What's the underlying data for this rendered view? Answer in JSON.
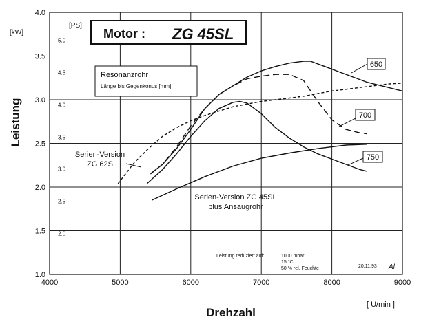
{
  "chart_data": {
    "type": "line",
    "title": "Motor :",
    "title_model": "ZG 45SL",
    "xlabel": "Drehzahl",
    "xunit": "[ U/min ]",
    "ylabel": "Leistung",
    "yunit_kw": "[kW]",
    "yunit_ps": "[PS]",
    "xlim": [
      4000,
      9000
    ],
    "ylim": [
      1.0,
      4.0
    ],
    "x_ticks": [
      "4000",
      "5000",
      "6000",
      "7000",
      "8000",
      "9000"
    ],
    "x_tick_values": [
      4000,
      5000,
      6000,
      7000,
      8000,
      9000
    ],
    "y_ticks": [
      "1.0",
      "1.5",
      "2.0",
      "2.5",
      "3.0",
      "3.5",
      "4.0"
    ],
    "y_tick_values": [
      1.0,
      1.5,
      2.0,
      2.5,
      3.0,
      3.5,
      4.0
    ],
    "ps_ticks": [
      {
        "label": "2.0",
        "kw": 1.47
      },
      {
        "label": "2.5",
        "kw": 1.84
      },
      {
        "label": "3.0",
        "kw": 2.21
      },
      {
        "label": "3.5",
        "kw": 2.57
      },
      {
        "label": "4.0",
        "kw": 2.94
      },
      {
        "label": "4.5",
        "kw": 3.31
      },
      {
        "label": "5.0",
        "kw": 3.68
      }
    ],
    "grid": true,
    "legend_box": {
      "title": "Resonanzrohr",
      "subtitle": "Länge bis Gegenkonus [mm]"
    },
    "series": [
      {
        "name": "650",
        "style": "solid",
        "points": [
          [
            5440,
            2.16
          ],
          [
            5600,
            2.26
          ],
          [
            5800,
            2.44
          ],
          [
            6000,
            2.66
          ],
          [
            6200,
            2.9
          ],
          [
            6400,
            3.06
          ],
          [
            6600,
            3.16
          ],
          [
            6800,
            3.26
          ],
          [
            7000,
            3.33
          ],
          [
            7200,
            3.38
          ],
          [
            7400,
            3.42
          ],
          [
            7600,
            3.44
          ],
          [
            7700,
            3.44
          ],
          [
            7900,
            3.38
          ],
          [
            8100,
            3.32
          ],
          [
            8300,
            3.26
          ],
          [
            8500,
            3.2
          ],
          [
            8700,
            3.16
          ],
          [
            9000,
            3.1
          ]
        ]
      },
      {
        "name": "700",
        "style": "dashed",
        "points": [
          [
            5430,
            2.15
          ],
          [
            5600,
            2.26
          ],
          [
            5800,
            2.46
          ],
          [
            6000,
            2.7
          ],
          [
            6200,
            2.9
          ],
          [
            6400,
            3.06
          ],
          [
            6600,
            3.16
          ],
          [
            6800,
            3.24
          ],
          [
            7000,
            3.27
          ],
          [
            7200,
            3.29
          ],
          [
            7400,
            3.29
          ],
          [
            7600,
            3.22
          ],
          [
            7800,
            2.98
          ],
          [
            8000,
            2.77
          ],
          [
            8200,
            2.66
          ],
          [
            8400,
            2.62
          ],
          [
            8500,
            2.61
          ]
        ]
      },
      {
        "name": "750",
        "style": "solid",
        "points": [
          [
            5380,
            2.04
          ],
          [
            5600,
            2.2
          ],
          [
            5800,
            2.38
          ],
          [
            6000,
            2.58
          ],
          [
            6200,
            2.76
          ],
          [
            6400,
            2.9
          ],
          [
            6600,
            2.97
          ],
          [
            6700,
            2.98
          ],
          [
            6800,
            2.96
          ],
          [
            7000,
            2.84
          ],
          [
            7200,
            2.68
          ],
          [
            7400,
            2.56
          ],
          [
            7600,
            2.46
          ],
          [
            7800,
            2.38
          ],
          [
            8000,
            2.32
          ],
          [
            8200,
            2.26
          ],
          [
            8400,
            2.2
          ],
          [
            8500,
            2.18
          ]
        ]
      },
      {
        "name": "Serien-Version ZG 62S",
        "style": "dashed-fine",
        "points": [
          [
            4970,
            2.04
          ],
          [
            5200,
            2.28
          ],
          [
            5400,
            2.44
          ],
          [
            5600,
            2.58
          ],
          [
            5800,
            2.68
          ],
          [
            6000,
            2.76
          ],
          [
            6200,
            2.82
          ],
          [
            6400,
            2.87
          ],
          [
            6600,
            2.92
          ],
          [
            6800,
            2.95
          ],
          [
            7000,
            2.98
          ],
          [
            7200,
            3.0
          ],
          [
            7400,
            3.02
          ],
          [
            7600,
            3.04
          ],
          [
            7800,
            3.07
          ],
          [
            8000,
            3.1
          ],
          [
            8200,
            3.12
          ],
          [
            8400,
            3.14
          ],
          [
            8600,
            3.16
          ],
          [
            8800,
            3.18
          ],
          [
            9000,
            3.19
          ]
        ]
      },
      {
        "name": "Serien-Version ZG 45SL plus Ansaugrohr",
        "style": "solid",
        "points": [
          [
            5450,
            1.85
          ],
          [
            5800,
            1.98
          ],
          [
            6200,
            2.12
          ],
          [
            6600,
            2.24
          ],
          [
            7000,
            2.33
          ],
          [
            7400,
            2.39
          ],
          [
            7800,
            2.44
          ],
          [
            8200,
            2.48
          ],
          [
            8500,
            2.49
          ]
        ]
      }
    ],
    "curve_labels": [
      {
        "text": "650",
        "boxed": true
      },
      {
        "text": "700",
        "boxed": true
      },
      {
        "text": "750",
        "boxed": true
      }
    ],
    "series_labels": [
      {
        "line1": "Serien-Version",
        "line2": "ZG 62S"
      },
      {
        "line1": "Serien-Version  ZG  45SL",
        "line2": "plus  Ansaugrohr"
      }
    ],
    "conditions": {
      "label": "Leistung reduziert auf:",
      "values": [
        "1000  mbar",
        "15  °C",
        "50  %  rel.  Feuchte"
      ]
    },
    "date": "20.11.93",
    "signature": "Al"
  }
}
